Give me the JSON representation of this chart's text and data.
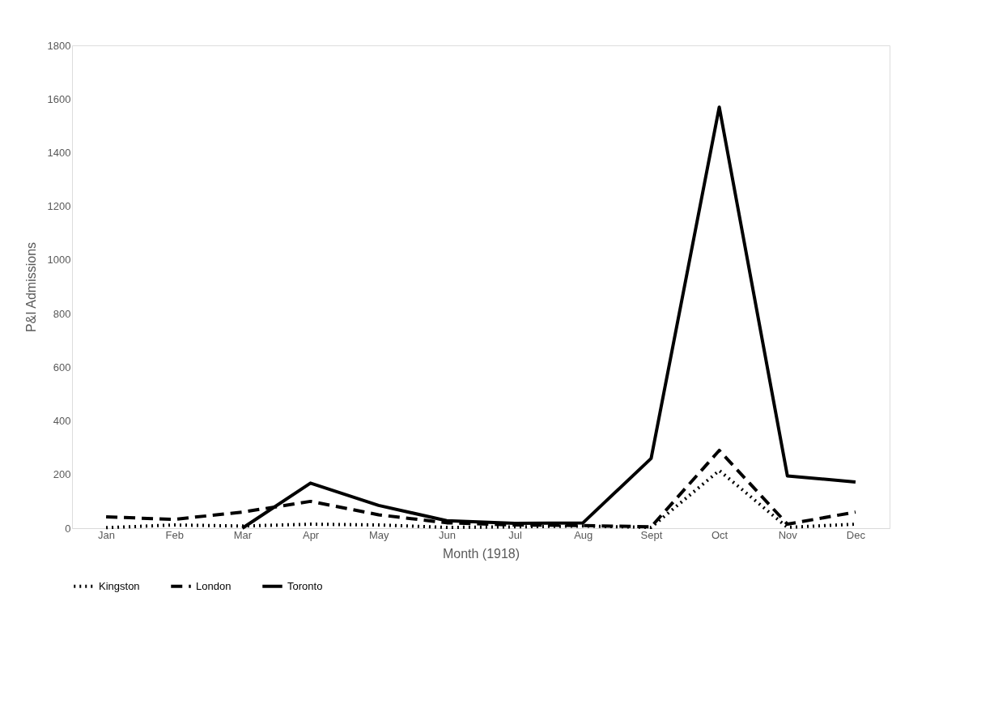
{
  "chart_data": {
    "type": "line",
    "xlabel": "Month (1918)",
    "ylabel": "P&I Admissions",
    "categories": [
      "Jan",
      "Feb",
      "Mar",
      "Apr",
      "May",
      "Jun",
      "Jul",
      "Aug",
      "Sept",
      "Oct",
      "Nov",
      "Dec"
    ],
    "series": [
      {
        "name": "Kingston",
        "color": "#000000",
        "line_style": "dotted",
        "values": [
          2,
          12,
          8,
          15,
          12,
          3,
          5,
          8,
          3,
          215,
          3,
          15
        ]
      },
      {
        "name": "London",
        "color": "#000000",
        "line_style": "dashed",
        "values": [
          42,
          33,
          60,
          100,
          50,
          20,
          12,
          10,
          5,
          290,
          15,
          60
        ]
      },
      {
        "name": "Toronto",
        "color": "#000000",
        "line_style": "solid",
        "values": [
          null,
          null,
          0,
          168,
          85,
          28,
          18,
          20,
          260,
          1570,
          195,
          172
        ]
      }
    ],
    "ylim": [
      0,
      1800
    ],
    "yticks": [
      0,
      200,
      400,
      600,
      800,
      1000,
      1200,
      1400,
      1600,
      1800
    ],
    "grid": false,
    "legend": "bottom",
    "marker": "none"
  }
}
